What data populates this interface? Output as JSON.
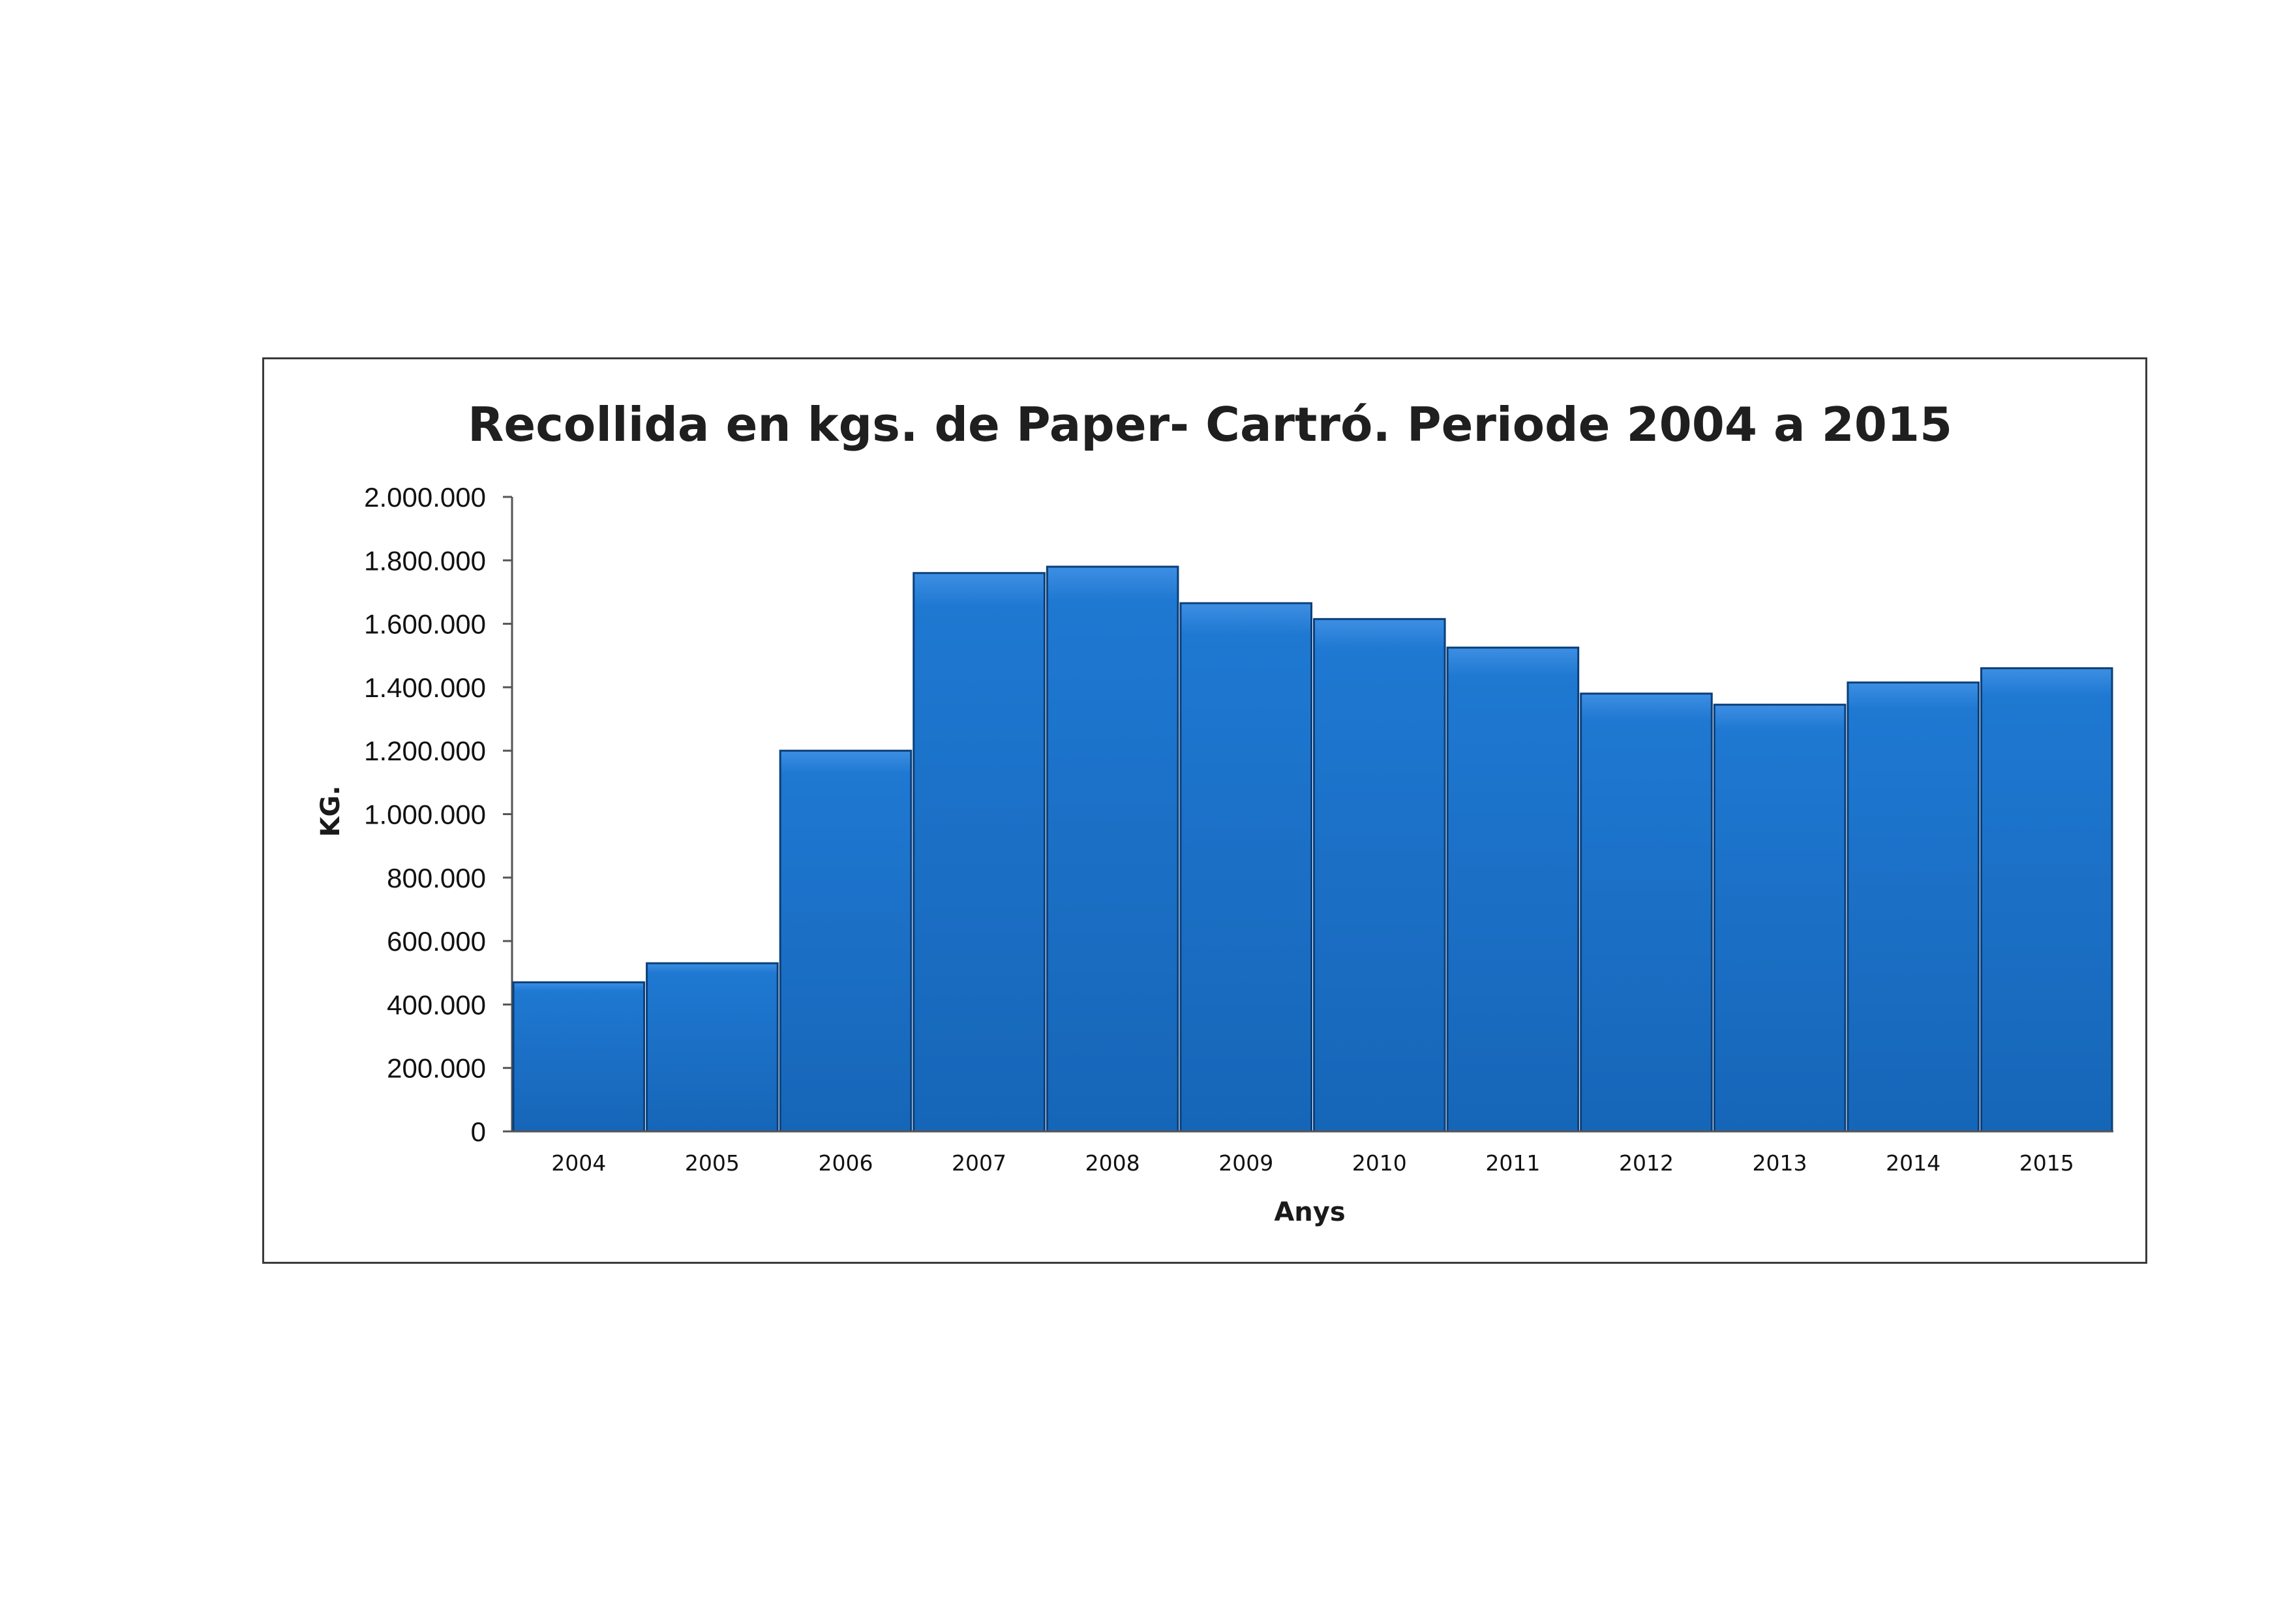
{
  "chart_data": {
    "type": "bar",
    "title": "Recollida en kgs. de Paper- Cartró. Periode 2004 a 2015",
    "xlabel": "Anys",
    "ylabel": "KG.",
    "categories": [
      "2004",
      "2005",
      "2006",
      "2007",
      "2008",
      "2009",
      "2010",
      "2011",
      "2012",
      "2013",
      "2014",
      "2015"
    ],
    "values": [
      470000,
      530000,
      1200000,
      1760000,
      1780000,
      1665000,
      1615000,
      1525000,
      1380000,
      1345000,
      1415000,
      1460000
    ],
    "ylim": [
      0,
      2000000
    ],
    "yticks": [
      0,
      200000,
      400000,
      600000,
      800000,
      1000000,
      1200000,
      1400000,
      1600000,
      1800000,
      2000000
    ],
    "ytick_labels": [
      "0",
      "200.000",
      "400.000",
      "600.000",
      "800.000",
      "1.000.000",
      "1.200.000",
      "1.400.000",
      "1.600.000",
      "1.800.000",
      "2.000.000"
    ],
    "grid": false,
    "legend": "none",
    "bar_color": "#1f78d1",
    "bar_edge_color": "#0b3f7a"
  }
}
